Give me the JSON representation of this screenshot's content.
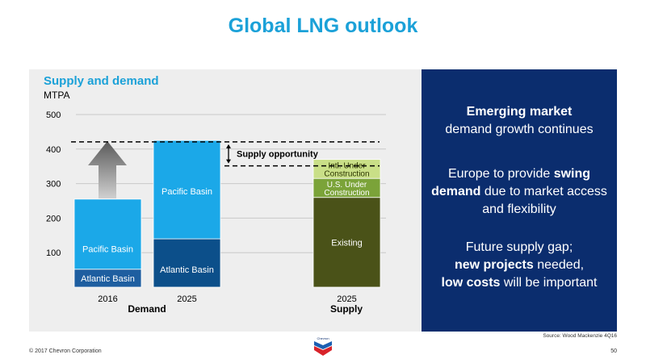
{
  "slide": {
    "title": "Global LNG outlook",
    "source": "Source: Wood Mackenzie 4Q16",
    "copyright": "© 2017 Chevron Corporation",
    "page_number": "50",
    "logo_text": "Chevron"
  },
  "chart_data": {
    "type": "bar",
    "stacked": true,
    "title": "Supply and demand",
    "unit": "MTPA",
    "ylim": [
      0,
      500
    ],
    "yticks": [
      100,
      200,
      300,
      400,
      500
    ],
    "grid": true,
    "bars": [
      {
        "category": "2016",
        "group": "Demand",
        "segments": [
          {
            "label": "Atlantic Basin",
            "value": 52,
            "color": "#1e5ea0"
          },
          {
            "label": "Pacific Basin",
            "value": 203,
            "color": "#1ba8e8"
          }
        ]
      },
      {
        "category": "2025",
        "group": "Demand",
        "segments": [
          {
            "label": "Atlantic Basin",
            "value": 140,
            "color": "#0c4f8a"
          },
          {
            "label": "Pacific Basin",
            "value": 285,
            "color": "#1ba8e8"
          }
        ]
      },
      {
        "category": "2025",
        "group": "Supply",
        "segments": [
          {
            "label": "Existing",
            "value": 260,
            "color": "#4a5218"
          },
          {
            "label": "U.S. Under Construction",
            "value": 55,
            "color": "#7ba339"
          },
          {
            "label": "Intl. Under Construction",
            "value": 55,
            "color": "#c9df87"
          }
        ]
      }
    ],
    "groups": [
      "Demand",
      "Supply"
    ],
    "annotations": {
      "supply_opportunity": "Supply opportunity",
      "demand_line": 428,
      "supply_line": 370
    }
  },
  "side_panel": {
    "p1_bold": "Emerging market",
    "p1_rest": "demand growth continues",
    "p2_a": "Europe to provide",
    "p2_b": "swing",
    "p2_c": "demand",
    "p2_d": "due to market access and flexibility",
    "p3_a": "Future supply gap;",
    "p3_b": "new projects",
    "p3_c": "needed,",
    "p3_d": "low costs",
    "p3_e": "will be important"
  }
}
